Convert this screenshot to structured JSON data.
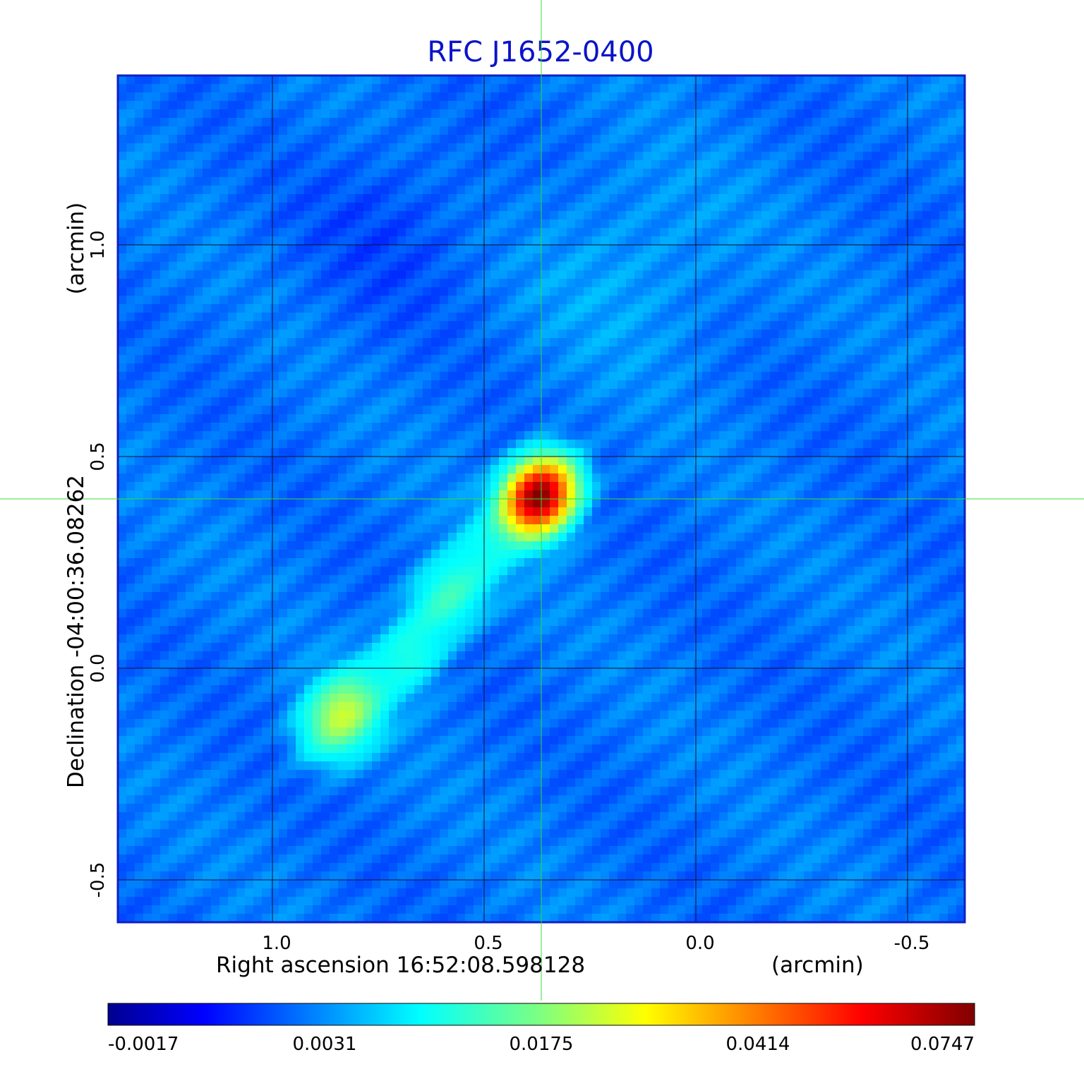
{
  "chart_data": {
    "type": "heatmap",
    "title": "RFC J1652-0400",
    "xlabel": "Right ascension  16:52:08.598128",
    "x_unit": "(arcmin)",
    "ylabel": "Declination  -04:00:36.08262",
    "y_unit": "(arcmin)",
    "xlim": [
      1.365,
      -0.635
    ],
    "ylim": [
      -0.6,
      1.4
    ],
    "x_ticks": [
      {
        "value": 1.0,
        "label": "1.0"
      },
      {
        "value": 0.5,
        "label": "0.5"
      },
      {
        "value": 0.0,
        "label": "0.0"
      },
      {
        "value": -0.5,
        "label": "-0.5"
      }
    ],
    "y_ticks": [
      {
        "value": 1.0,
        "label": "1.0"
      },
      {
        "value": 0.5,
        "label": "0.5"
      },
      {
        "value": 0.0,
        "label": "0.0"
      },
      {
        "value": -0.5,
        "label": "-0.5"
      }
    ],
    "grid": true,
    "crosshair": {
      "x": 0.365,
      "y": 0.4,
      "color": "#33dd33"
    },
    "colorscale": "jet",
    "colorbar": {
      "position": "bottom",
      "tick_labels": [
        "-0.0017",
        "0.0031",
        "0.0175",
        "0.0414",
        "0.0747"
      ],
      "min": -0.0017,
      "max": 0.0747
    },
    "sources": [
      {
        "x": 0.37,
        "y": 0.405,
        "peak": 0.0747
      },
      {
        "x": 0.835,
        "y": -0.11,
        "peak": 0.0175
      },
      {
        "x": 0.585,
        "y": 0.17,
        "peak": 0.008
      },
      {
        "x": 0.68,
        "y": 0.03,
        "peak": 0.006
      },
      {
        "x": 0.485,
        "y": 0.29,
        "peak": 0.004
      }
    ],
    "colors": {
      "title": "#0a14c8",
      "frame": "#1020c0",
      "grid": "#101030",
      "crosshair": "#33dd33"
    }
  }
}
